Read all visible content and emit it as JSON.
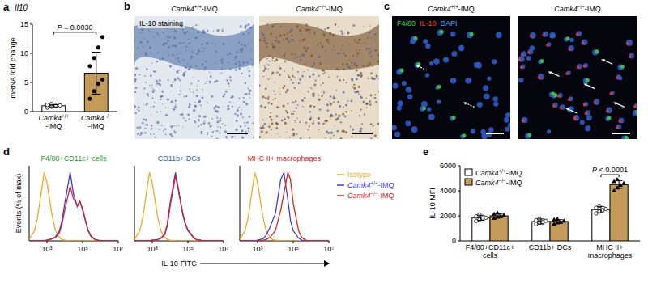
{
  "chart_data": [
    {
      "letter": "a",
      "type": "bar",
      "title": "Il10",
      "ylabel": "mRNA fold change",
      "categories": [
        "Camk4+/+-IMQ",
        "Camk4−/−-IMQ"
      ],
      "values": [
        1.0,
        6.6
      ],
      "errors": [
        0.2,
        3.6
      ],
      "points": [
        [
          0.7,
          0.85,
          0.95,
          1.05,
          1.15,
          1.3
        ],
        [
          2.2,
          3.5,
          4.8,
          5.5,
          7.8,
          9.2,
          11.0,
          12.8
        ]
      ],
      "colors": [
        "#ffffff",
        "#c49a5a"
      ],
      "ylim": [
        0,
        15
      ],
      "yticks": [
        0,
        5,
        10,
        15
      ],
      "annotation": "P = 0.0030",
      "grid": false
    },
    {
      "letter": "d",
      "type": "line",
      "title": "F4/80+CD11c+ cells",
      "color": "#2ca02c",
      "ylabel": "Events (% of max)",
      "log": "x",
      "tick_labels": "x",
      "grid": false,
      "x": [
        100,
        200,
        300,
        500,
        700,
        1000,
        2000,
        3000,
        5000,
        7000,
        10000,
        20000,
        30000,
        50000,
        70000,
        100000,
        200000,
        300000,
        500000,
        700000,
        1000000,
        2000000,
        3000000,
        5000000,
        7000000,
        10000000
      ],
      "xlim": [
        100,
        10000000
      ],
      "xticks": [
        {
          "value": 1000,
          "label": "10³"
        },
        {
          "value": 100000,
          "label": "10⁵"
        },
        {
          "value": 10000000,
          "label": "10⁷"
        }
      ],
      "ylim": [
        0,
        110
      ],
      "series": [
        {
          "name": "Isotype",
          "color": "#f5a623",
          "values": [
            2,
            15,
            35,
            75,
            100,
            85,
            35,
            15,
            5,
            2,
            1,
            0,
            0,
            0,
            0,
            0,
            0,
            0,
            0,
            0,
            0,
            0,
            0,
            0,
            0,
            0
          ]
        },
        {
          "name": "Camk4+/+-IMQ",
          "color": "#3a3adf",
          "values": [
            0,
            0,
            0,
            0,
            0,
            1,
            3,
            6,
            15,
            30,
            55,
            100,
            70,
            50,
            58,
            45,
            15,
            6,
            2,
            1,
            0,
            0,
            0,
            0,
            0,
            0
          ]
        },
        {
          "name": "Camk4−/−-IMQ",
          "color": "#e02020",
          "values": [
            0,
            0,
            0,
            0,
            0,
            1,
            3,
            5,
            12,
            25,
            45,
            80,
            62,
            52,
            58,
            47,
            16,
            7,
            2,
            1,
            0,
            0,
            0,
            0,
            0,
            0
          ]
        }
      ]
    },
    {
      "type": "line",
      "title": "CD11b+ DCs",
      "color": "#1f5fd6",
      "xlabel": "IL-10-FITC",
      "log": "x",
      "tick_labels": "x",
      "grid": false,
      "x": [
        100,
        200,
        300,
        500,
        700,
        1000,
        2000,
        3000,
        5000,
        7000,
        10000,
        20000,
        30000,
        50000,
        70000,
        100000,
        200000,
        300000,
        500000,
        700000,
        1000000,
        2000000,
        3000000,
        5000000,
        7000000,
        10000000
      ],
      "xlim": [
        100,
        10000000
      ],
      "xticks": [
        {
          "value": 1000,
          "label": "10³"
        },
        {
          "value": 100000,
          "label": "10⁵"
        },
        {
          "value": 10000000,
          "label": "10⁷"
        }
      ],
      "ylim": [
        0,
        110
      ],
      "series": [
        {
          "name": "Isotype",
          "color": "#f5a623",
          "values": [
            2,
            15,
            35,
            75,
            100,
            85,
            35,
            15,
            5,
            2,
            1,
            0,
            0,
            0,
            0,
            0,
            0,
            0,
            0,
            0,
            0,
            0,
            0,
            0,
            0,
            0
          ]
        },
        {
          "name": "Camk4+/+-IMQ",
          "color": "#3a3adf",
          "values": [
            0,
            0,
            0,
            0,
            0,
            1,
            2,
            4,
            10,
            25,
            55,
            100,
            75,
            40,
            25,
            15,
            5,
            2,
            1,
            0,
            0,
            0,
            0,
            0,
            0,
            0
          ]
        },
        {
          "name": "Camk4−/−-IMQ",
          "color": "#e02020",
          "values": [
            0,
            0,
            0,
            0,
            0,
            1,
            2,
            4,
            9,
            22,
            50,
            95,
            72,
            42,
            27,
            16,
            6,
            2,
            1,
            0,
            0,
            0,
            0,
            0,
            0,
            0
          ]
        }
      ]
    },
    {
      "type": "line",
      "title": "MHC II+ macrophages",
      "color": "#e02020",
      "legend": "right",
      "log": "x",
      "tick_labels": "x",
      "grid": false,
      "x": [
        100,
        200,
        300,
        500,
        700,
        1000,
        2000,
        3000,
        5000,
        7000,
        10000,
        20000,
        30000,
        50000,
        70000,
        100000,
        200000,
        300000,
        500000,
        700000,
        1000000,
        2000000,
        3000000,
        5000000,
        7000000,
        10000000
      ],
      "xlim": [
        100,
        10000000
      ],
      "xticks": [
        {
          "value": 1000,
          "label": "10³"
        },
        {
          "value": 100000,
          "label": "10⁵"
        },
        {
          "value": 10000000,
          "label": "10⁷"
        }
      ],
      "ylim": [
        0,
        110
      ],
      "series": [
        {
          "name": "Isotype",
          "color": "#f5a623",
          "values": [
            2,
            15,
            35,
            75,
            100,
            85,
            35,
            15,
            5,
            2,
            1,
            0,
            0,
            0,
            0,
            0,
            0,
            0,
            0,
            0,
            0,
            0,
            0,
            0,
            0,
            0
          ]
        },
        {
          "name": "Camk4+/+-IMQ",
          "color": "#3a3adf",
          "values": [
            0,
            0,
            0,
            0,
            0,
            1,
            3,
            8,
            20,
            30,
            40,
            90,
            100,
            60,
            30,
            15,
            4,
            1,
            0,
            0,
            0,
            0,
            0,
            0,
            0,
            0
          ]
        },
        {
          "name": "Camk4−/−-IMQ",
          "color": "#e02020",
          "values": [
            0,
            0,
            0,
            0,
            0,
            0,
            1,
            2,
            5,
            10,
            15,
            45,
            70,
            100,
            90,
            55,
            15,
            5,
            1,
            0,
            0,
            0,
            0,
            0,
            0,
            0
          ]
        }
      ]
    },
    {
      "letter": "e",
      "type": "bar",
      "ylabel": "IL-10 MFI",
      "categories": [
        "F4/80+CD11c+ cells",
        "CD11b+ DCs",
        "MHC II+ macrophages"
      ],
      "ylim": [
        0,
        6000
      ],
      "yticks": [
        0,
        2000,
        4000,
        6000
      ],
      "legend": "upper left",
      "annotation": "P < 0.0001",
      "grid": false,
      "series": [
        {
          "name": "Camk4+/+-IMQ",
          "color": "#ffffff",
          "marker": "circle",
          "values": [
            1850,
            1550,
            2500
          ],
          "errors": [
            200,
            200,
            250
          ],
          "points": [
            [
              1600,
              1700,
              1800,
              1850,
              1950,
              2100
            ],
            [
              1350,
              1450,
              1500,
              1600,
              1650,
              1750
            ],
            [
              2200,
              2350,
              2450,
              2550,
              2650,
              2800
            ]
          ]
        },
        {
          "name": "Camk4−/−-IMQ",
          "color": "#c49a5a",
          "marker": "triangle",
          "values": [
            2000,
            1550,
            4500
          ],
          "errors": [
            150,
            150,
            300
          ],
          "points": [
            [
              1800,
              1900,
              1950,
              2050,
              2150,
              2250
            ],
            [
              1350,
              1450,
              1500,
              1600,
              1700,
              1750
            ],
            [
              4000,
              4250,
              4450,
              4600,
              4750,
              4900
            ]
          ]
        }
      ]
    }
  ],
  "image_panels": [
    {
      "letter": "b",
      "titles": [
        "Camk4+/+-IMQ",
        "Camk4−/−-IMQ"
      ],
      "label": "IL-10 staining"
    },
    {
      "letter": "c",
      "titles": [
        "Camk4+/+-IMQ",
        "Camk4−/−-IMQ"
      ],
      "channels": [
        {
          "name": "F4/80",
          "color": "#3cd23c"
        },
        {
          "name": "IL-10",
          "color": "#ff3030"
        },
        {
          "name": "DAPI",
          "color": "#4aa0ff"
        }
      ]
    }
  ]
}
